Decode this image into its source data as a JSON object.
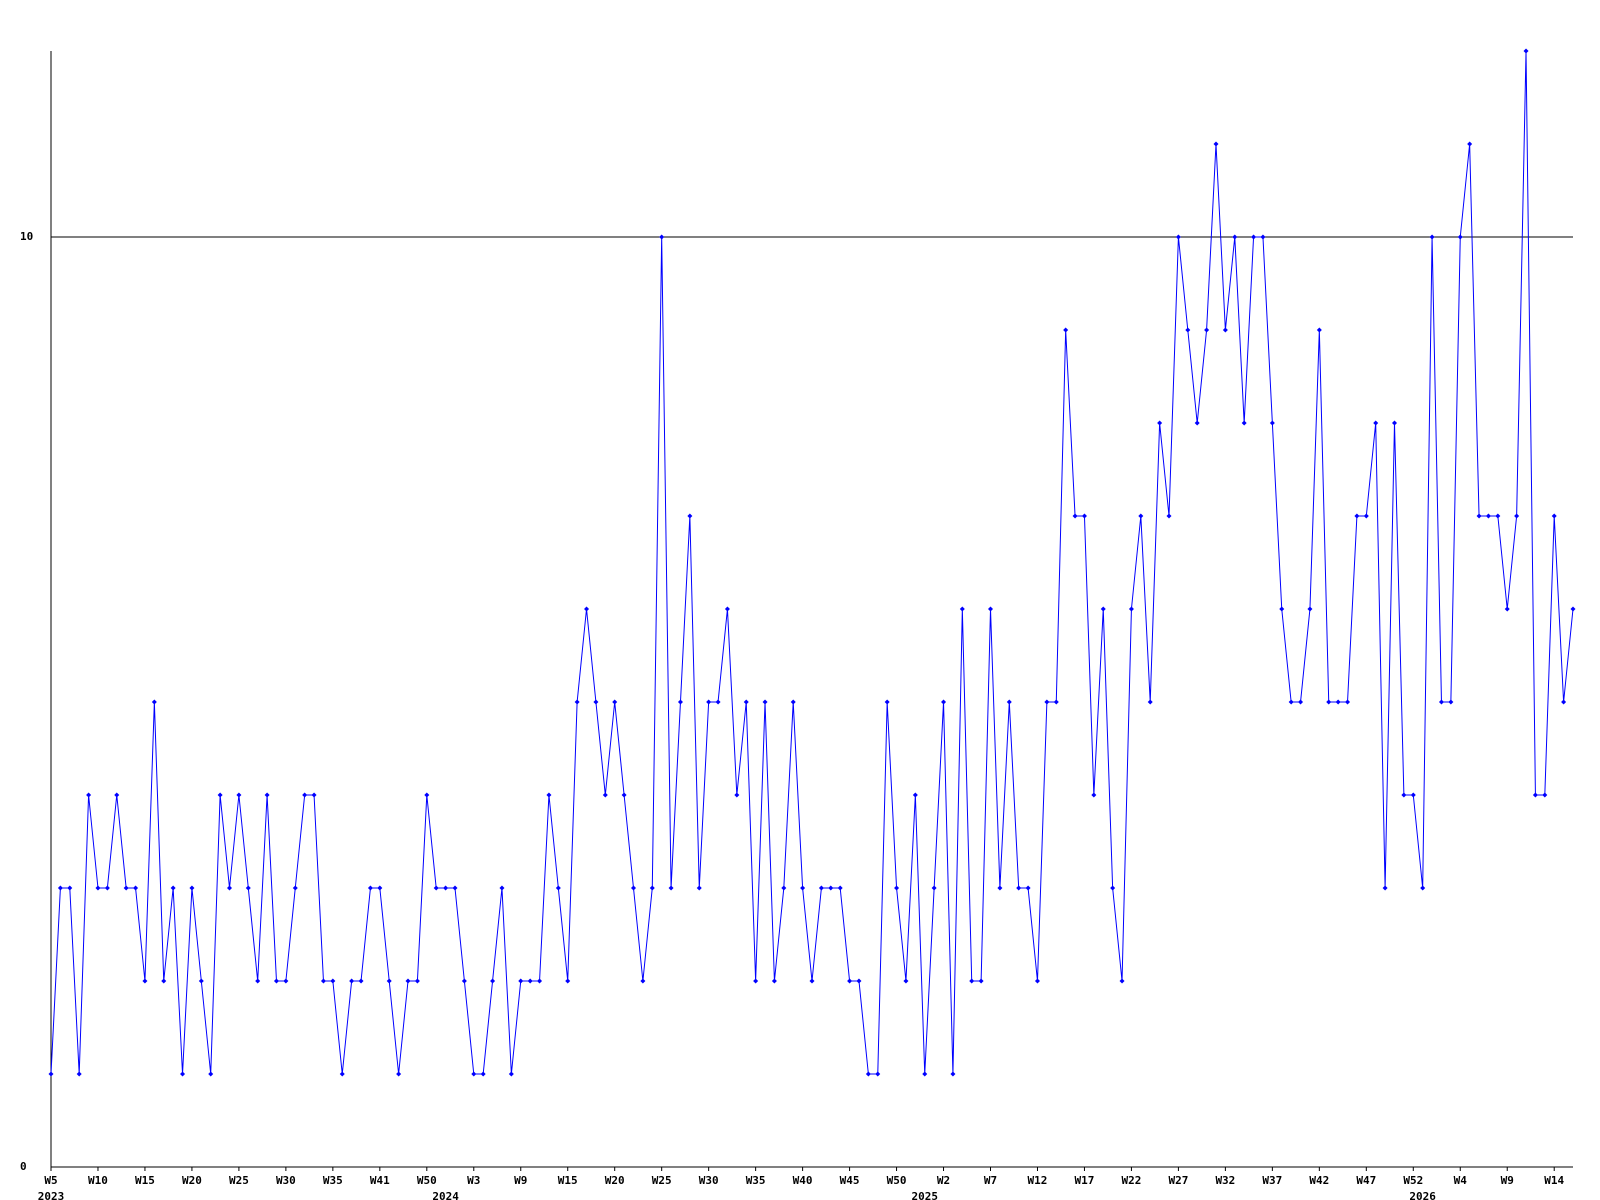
{
  "chart_data": {
    "type": "line",
    "categories": [
      "W5",
      null,
      null,
      null,
      null,
      "W10",
      null,
      null,
      null,
      null,
      "W15",
      null,
      null,
      null,
      null,
      "W20",
      null,
      null,
      null,
      null,
      "W25",
      null,
      null,
      null,
      null,
      "W30",
      null,
      null,
      null,
      null,
      "W35",
      null,
      null,
      null,
      null,
      "W41",
      null,
      null,
      null,
      null,
      "W50",
      null,
      null,
      null,
      null,
      "W3",
      null,
      null,
      null,
      null,
      "W9",
      null,
      null,
      null,
      null,
      "W15",
      null,
      null,
      null,
      null,
      "W20",
      null,
      null,
      null,
      null,
      "W25",
      null,
      null,
      null,
      null,
      "W30",
      null,
      null,
      null,
      null,
      "W35",
      null,
      null,
      null,
      null,
      "W40",
      null,
      null,
      null,
      null,
      "W45",
      null,
      null,
      null,
      null,
      "W50",
      null,
      null,
      null,
      null,
      "W2",
      null,
      null,
      null,
      null,
      "W7",
      null,
      null,
      null,
      null,
      "W12",
      null,
      null,
      null,
      null,
      "W17",
      null,
      null,
      null,
      null,
      "W22",
      null,
      null,
      null,
      null,
      "W27",
      null,
      null,
      null,
      null,
      "W32",
      null,
      null,
      null,
      null,
      "W37",
      null,
      null,
      null,
      null,
      "W42",
      null,
      null,
      null,
      null,
      "W47",
      null,
      null,
      null,
      null,
      "W52",
      null,
      null,
      null,
      null,
      "W4",
      null,
      null,
      null,
      null,
      "W9",
      null,
      null,
      null,
      null,
      "W14",
      null,
      null
    ],
    "year_labels": [
      "2023",
      null,
      null,
      null,
      null,
      null,
      null,
      null,
      null,
      null,
      null,
      null,
      null,
      null,
      null,
      null,
      null,
      null,
      null,
      null,
      null,
      null,
      null,
      null,
      null,
      null,
      null,
      null,
      null,
      null,
      null,
      null,
      null,
      null,
      null,
      null,
      null,
      null,
      null,
      null,
      null,
      null,
      "2024",
      null,
      null,
      null,
      null,
      null,
      null,
      null,
      null,
      null,
      null,
      null,
      null,
      null,
      null,
      null,
      null,
      null,
      null,
      null,
      null,
      null,
      null,
      null,
      null,
      null,
      null,
      null,
      null,
      null,
      null,
      null,
      null,
      null,
      null,
      null,
      null,
      null,
      null,
      null,
      null,
      null,
      null,
      null,
      null,
      null,
      null,
      null,
      null,
      null,
      null,
      "2025",
      null,
      null,
      null,
      null,
      null,
      null,
      null,
      null,
      null,
      null,
      null,
      null,
      null,
      null,
      null,
      null,
      null,
      null,
      null,
      null,
      null,
      null,
      null,
      null,
      null,
      null,
      null,
      null,
      null,
      null,
      null,
      null,
      null,
      null,
      null,
      null,
      null,
      null,
      null,
      null,
      null,
      null,
      null,
      null,
      null,
      null,
      null,
      null,
      null,
      null,
      null,
      null,
      "2026",
      null,
      null,
      null,
      null,
      null,
      null,
      null,
      null,
      null,
      null,
      null,
      null,
      null,
      null,
      null,
      null
    ],
    "series": [
      {
        "color": "#0000ff",
        "values": [
          1,
          3,
          3,
          1,
          4,
          3,
          3,
          4,
          3,
          3,
          2,
          5,
          2,
          3,
          1,
          3,
          2,
          1,
          4,
          3,
          4,
          3,
          2,
          4,
          2,
          2,
          3,
          4,
          4,
          2,
          2,
          1,
          2,
          2,
          3,
          3,
          2,
          1,
          2,
          2,
          4,
          3,
          3,
          3,
          2,
          1,
          1,
          2,
          3,
          1,
          2,
          2,
          2,
          4,
          3,
          2,
          5,
          6,
          5,
          4,
          5,
          4,
          3,
          2,
          3,
          10,
          3,
          5,
          7,
          3,
          5,
          5,
          6,
          4,
          5,
          2,
          5,
          2,
          3,
          5,
          3,
          2,
          3,
          3,
          3,
          2,
          2,
          1,
          1,
          5,
          3,
          2,
          4,
          1,
          3,
          5,
          1,
          6,
          2,
          2,
          6,
          3,
          5,
          3,
          3,
          2,
          5,
          5,
          9,
          7,
          7,
          4,
          6,
          3,
          2,
          6,
          7,
          5,
          8,
          7,
          10,
          9,
          8,
          9,
          11,
          9,
          10,
          8,
          10,
          10,
          8,
          6,
          5,
          5,
          6,
          9,
          5,
          5,
          5,
          7,
          7,
          8,
          3,
          8,
          4,
          4,
          3,
          10,
          5,
          5,
          10,
          11,
          7,
          7,
          7,
          6,
          7,
          12,
          4,
          4,
          7,
          5,
          6
        ]
      }
    ],
    "ylim": [
      0,
      12
    ],
    "yticks": [
      0,
      10
    ],
    "grid": true
  }
}
